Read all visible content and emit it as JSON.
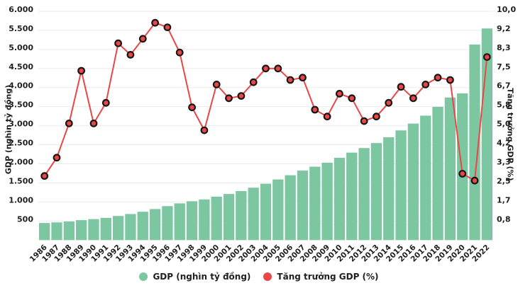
{
  "chart_data": {
    "type": "bar",
    "title": "",
    "categories": [
      "1986",
      "1987",
      "1988",
      "1989",
      "1990",
      "1991",
      "1992",
      "1993",
      "1994",
      "1995",
      "1996",
      "1997",
      "1998",
      "1999",
      "2000",
      "2001",
      "2002",
      "2003",
      "2004",
      "2005",
      "2006",
      "2007",
      "2008",
      "2009",
      "2010",
      "2011",
      "2012",
      "2013",
      "2014",
      "2015",
      "2016",
      "2017",
      "2018",
      "2019",
      "2020",
      "2021",
      "2022"
    ],
    "series": [
      {
        "name": "GDP (nghìn tỷ đồng)",
        "type": "bar",
        "yaxis": "left",
        "color": "#7dc6a2",
        "values": [
          447,
          463,
          486,
          522,
          549,
          581,
          631,
          682,
          742,
          813,
          889,
          962,
          1017,
          1065,
          1138,
          1208,
          1284,
          1373,
          1477,
          1589,
          1700,
          1821,
          1924,
          2028,
          2158,
          2293,
          2413,
          2544,
          2696,
          2876,
          3055,
          3263,
          3494,
          3739,
          3848,
          5130,
          5550
        ]
      },
      {
        "name": "Tăng trưởng GDP (%)",
        "type": "line",
        "yaxis": "right",
        "color": "#e94747",
        "marker_border": "#161616",
        "values": [
          2.8,
          3.6,
          5.1,
          7.4,
          5.1,
          6.0,
          8.6,
          8.1,
          8.8,
          9.5,
          9.3,
          8.2,
          5.8,
          4.8,
          6.8,
          6.2,
          6.3,
          6.9,
          7.5,
          7.5,
          7.0,
          7.1,
          5.7,
          5.4,
          6.4,
          6.2,
          5.2,
          5.4,
          6.0,
          6.7,
          6.2,
          6.8,
          7.1,
          7.0,
          2.9,
          2.6,
          8.0
        ]
      }
    ],
    "left_axis": {
      "title": "GDP (nghìn tỷ đồng)",
      "min": 0,
      "max": 6000,
      "tick_step": 500,
      "tick_labels": [
        "500",
        "1.000",
        "1.500",
        "2.000",
        "2.500",
        "3.000",
        "3.500",
        "4.000",
        "4.500",
        "5.000",
        "5.500",
        "6.000"
      ]
    },
    "right_axis": {
      "title": "Tăng trưởng GDP (%)",
      "min": 0,
      "max": 10,
      "tick_labels": [
        "0,8",
        "1,7",
        "2,5",
        "3,3",
        "4,2",
        "5,0",
        "5,8",
        "6,7",
        "7,5",
        "8,3",
        "9,2",
        "10,0"
      ]
    },
    "legend": {
      "position": "bottom",
      "items": [
        {
          "label": "GDP (nghìn tỷ đồng)",
          "color": "#7dc6a2"
        },
        {
          "label": "Tăng trưởng GDP (%)",
          "color": "#e94747"
        }
      ]
    },
    "grid": true,
    "colors": {
      "background": "#ffffff",
      "grid": "#ebebeb",
      "text": "#1f1f1f"
    }
  }
}
